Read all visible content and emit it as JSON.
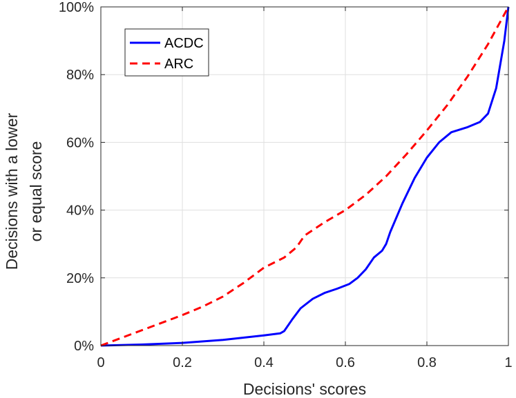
{
  "chart_data": {
    "type": "line",
    "title": "",
    "xlabel": "Decisions' scores",
    "ylabel_lines": [
      "Decisions with a lower",
      "or equal score"
    ],
    "xlim": [
      0,
      1
    ],
    "ylim": [
      0,
      100
    ],
    "xticks": [
      0,
      0.2,
      0.4,
      0.6,
      0.8,
      1
    ],
    "xtick_labels": [
      "0",
      "0.2",
      "0.4",
      "0.6",
      "0.8",
      "1"
    ],
    "yticks": [
      0,
      20,
      40,
      60,
      80,
      100
    ],
    "ytick_labels": [
      "0%",
      "20%",
      "40%",
      "60%",
      "80%",
      "100%"
    ],
    "grid": true,
    "legend_position": "top-left",
    "series": [
      {
        "name": "ACDC",
        "color": "#0000ff",
        "style": "solid",
        "x": [
          0,
          0.1,
          0.2,
          0.3,
          0.4,
          0.44,
          0.45,
          0.47,
          0.49,
          0.52,
          0.55,
          0.58,
          0.61,
          0.63,
          0.65,
          0.67,
          0.69,
          0.7,
          0.71,
          0.74,
          0.77,
          0.8,
          0.83,
          0.86,
          0.9,
          0.93,
          0.95,
          0.97,
          0.99,
          1.0
        ],
        "y": [
          0,
          0.3,
          0.8,
          1.7,
          3.0,
          3.6,
          4.3,
          7.8,
          11.0,
          13.8,
          15.6,
          16.8,
          18.2,
          20.0,
          22.5,
          26.0,
          28.0,
          30.0,
          33.5,
          42.0,
          49.5,
          55.5,
          60.0,
          63.0,
          64.5,
          66.0,
          68.5,
          76.0,
          90.0,
          100
        ]
      },
      {
        "name": "ARC",
        "color": "#ff0000",
        "style": "dashed",
        "x": [
          0,
          0.1,
          0.2,
          0.25,
          0.3,
          0.35,
          0.4,
          0.45,
          0.48,
          0.5,
          0.55,
          0.6,
          0.65,
          0.7,
          0.75,
          0.8,
          0.85,
          0.9,
          0.95,
          1.0
        ],
        "y": [
          0,
          4.5,
          9.0,
          11.5,
          14.5,
          18.5,
          23.0,
          26.0,
          29.0,
          32.5,
          36.5,
          40.0,
          44.5,
          50.0,
          56.5,
          63.5,
          71.0,
          79.5,
          89.0,
          100
        ]
      }
    ]
  }
}
